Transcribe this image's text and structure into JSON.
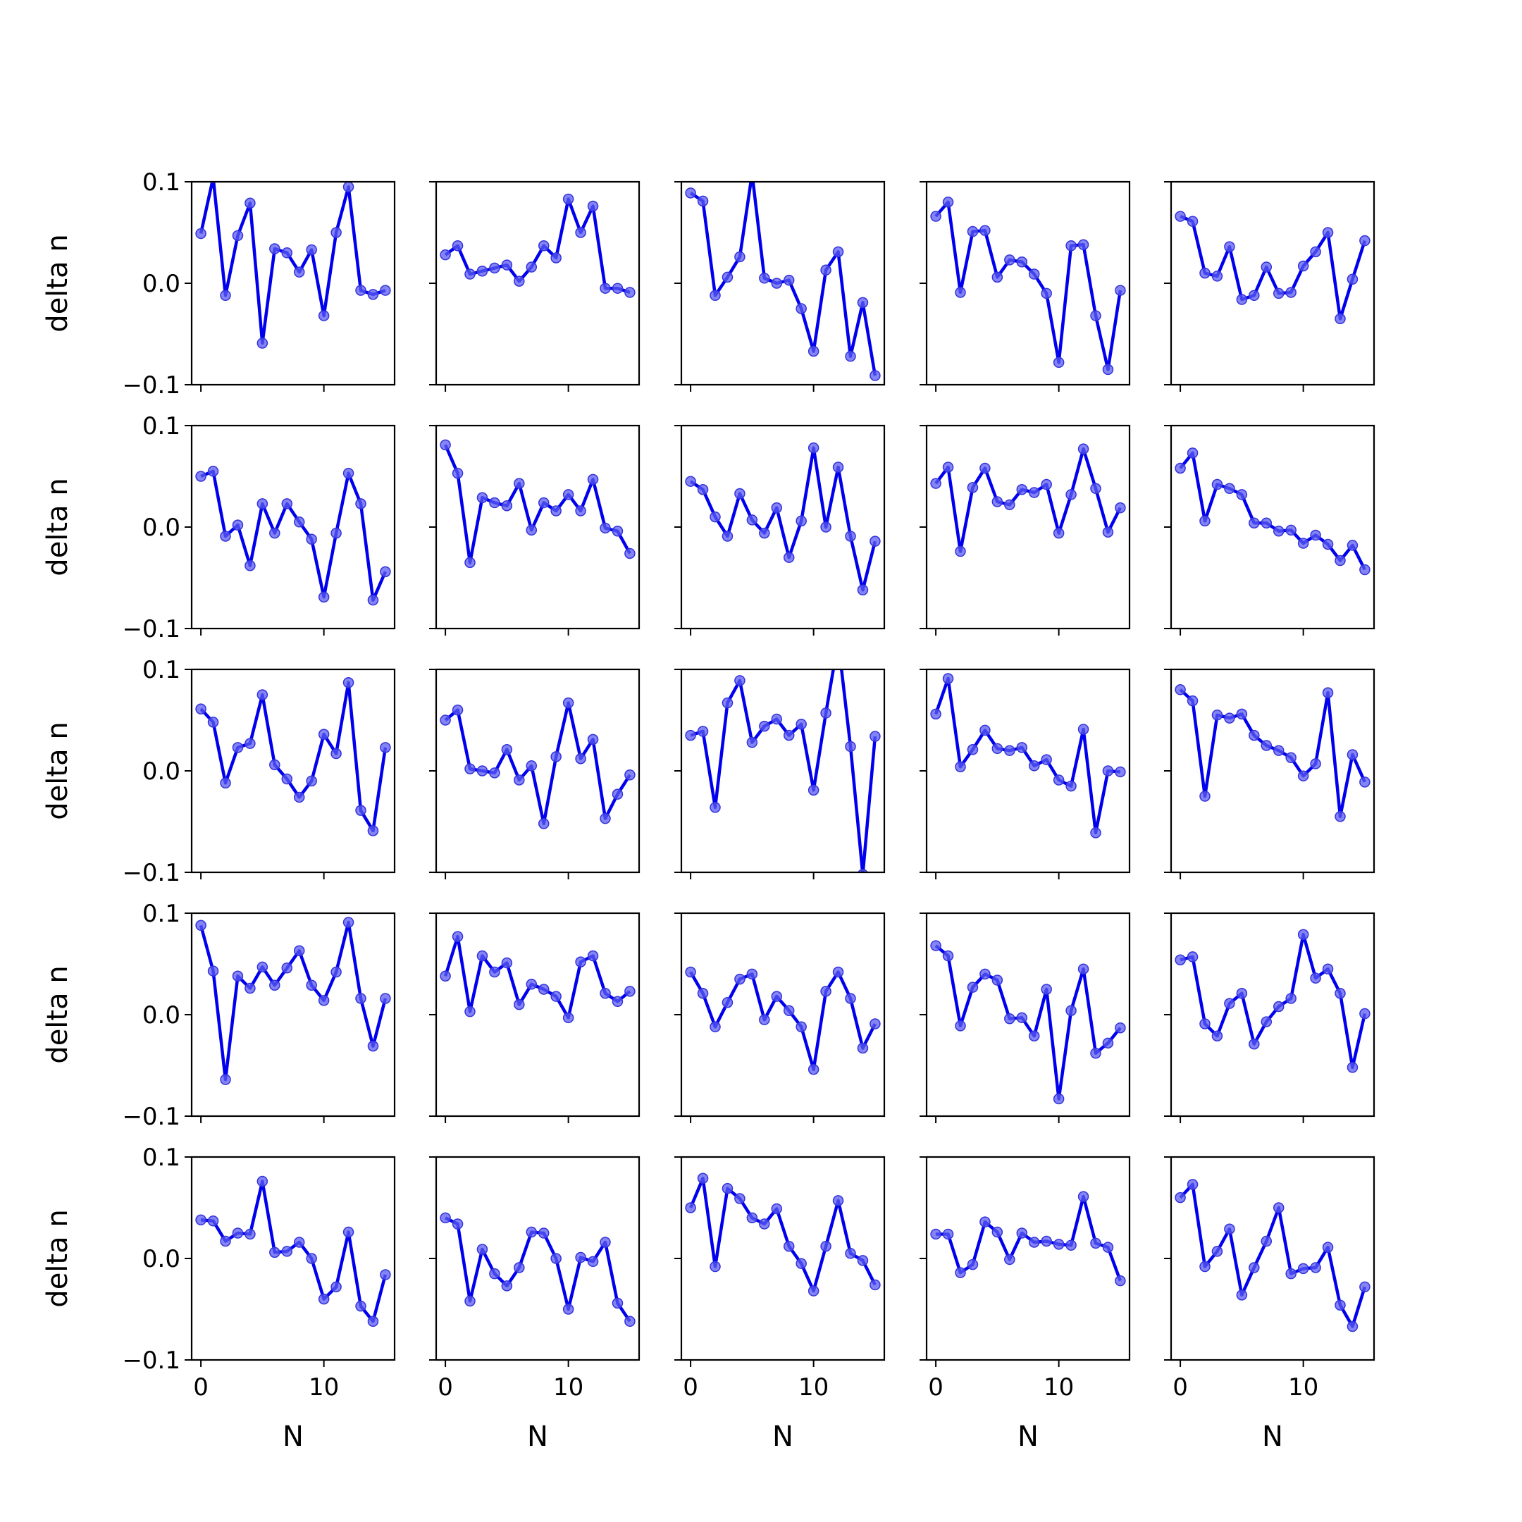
{
  "figure": {
    "colors": {
      "line": "#0000ee",
      "marker": "#5b5bf0",
      "marker_edge": "#3333dd",
      "axis": "#000000"
    },
    "grid": false
  },
  "chart_data": {
    "type": "line",
    "layout": "5x5 subplot grid",
    "xlabel": "N",
    "ylabel": "delta n",
    "xlim": [
      -0.75,
      15.75
    ],
    "ylim": [
      -0.1,
      0.1
    ],
    "xticks": [
      0,
      10
    ],
    "xtick_labels": [
      "0",
      "10"
    ],
    "yticks": [
      -0.1,
      0.0,
      0.1
    ],
    "ytick_labels": [
      "−0.1",
      "0.0",
      "0.1"
    ],
    "x": [
      0,
      1,
      2,
      3,
      4,
      5,
      6,
      7,
      8,
      9,
      10,
      11,
      12,
      13,
      14,
      15
    ],
    "panels": [
      [
        0.049,
        0.104,
        -0.012,
        0.047,
        0.079,
        -0.059,
        0.034,
        0.03,
        0.011,
        0.033,
        -0.032,
        0.05,
        0.095,
        -0.007,
        -0.011,
        -0.007
      ],
      [
        0.028,
        0.037,
        0.009,
        0.012,
        0.015,
        0.018,
        0.002,
        0.016,
        0.037,
        0.025,
        0.083,
        0.05,
        0.076,
        -0.005,
        -0.005,
        -0.009
      ],
      [
        0.089,
        0.081,
        -0.012,
        0.006,
        0.026,
        0.108,
        0.005,
        0.0,
        0.003,
        -0.025,
        -0.067,
        0.013,
        0.031,
        -0.072,
        -0.019,
        -0.091
      ],
      [
        0.066,
        0.08,
        -0.009,
        0.051,
        0.052,
        0.006,
        0.023,
        0.021,
        0.009,
        -0.01,
        -0.078,
        0.037,
        0.038,
        -0.032,
        -0.085,
        -0.007
      ],
      [
        0.066,
        0.061,
        0.01,
        0.007,
        0.036,
        -0.016,
        -0.012,
        0.016,
        -0.01,
        -0.009,
        0.017,
        0.031,
        0.05,
        -0.035,
        0.004,
        0.042
      ],
      [
        0.05,
        0.055,
        -0.009,
        0.002,
        -0.038,
        0.023,
        -0.006,
        0.023,
        0.005,
        -0.012,
        -0.069,
        -0.006,
        0.053,
        0.023,
        -0.072,
        -0.044
      ],
      [
        0.081,
        0.053,
        -0.035,
        0.029,
        0.024,
        0.021,
        0.043,
        -0.003,
        0.024,
        0.016,
        0.032,
        0.016,
        0.047,
        -0.001,
        -0.004,
        -0.026
      ],
      [
        0.045,
        0.037,
        0.01,
        -0.009,
        0.033,
        0.007,
        -0.006,
        0.019,
        -0.03,
        0.006,
        0.078,
        0.0,
        0.059,
        -0.009,
        -0.062,
        -0.014
      ],
      [
        0.043,
        0.059,
        -0.024,
        0.039,
        0.058,
        0.025,
        0.022,
        0.037,
        0.034,
        0.042,
        -0.006,
        0.032,
        0.077,
        0.038,
        -0.005,
        0.019
      ],
      [
        0.058,
        0.073,
        0.006,
        0.042,
        0.038,
        0.032,
        0.004,
        0.004,
        -0.004,
        -0.003,
        -0.016,
        -0.008,
        -0.017,
        -0.033,
        -0.018,
        -0.042
      ]
    ]
  }
}
